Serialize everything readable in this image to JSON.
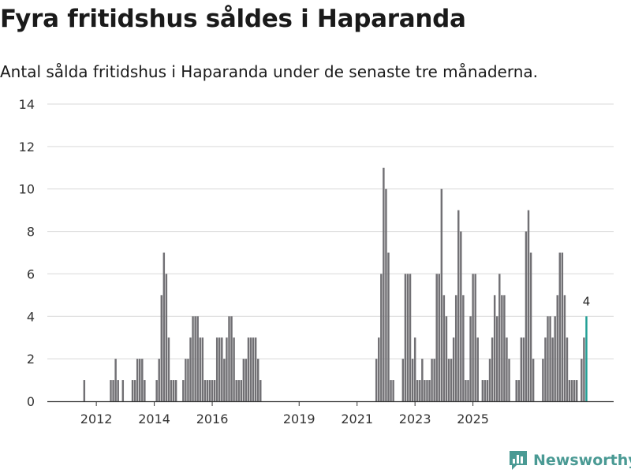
{
  "header": {
    "title": "Fyra fritidshus såldes i Haparanda",
    "subtitle": "Antal sålda fritidshus i Haparanda under de senaste tre månaderna."
  },
  "brand": {
    "name": "Newsworthy"
  },
  "colors": {
    "bar": "#717074",
    "highlight": "#1f9e94",
    "grid": "#d9d9d9",
    "brand": "#4a9a94"
  },
  "chart_data": {
    "type": "bar",
    "title": "Fyra fritidshus såldes i Haparanda",
    "xlabel": "",
    "ylabel": "",
    "ylim": [
      0,
      14
    ],
    "yticks": [
      "0",
      "2",
      "4",
      "6",
      "8",
      "10",
      "12",
      "14"
    ],
    "start": "2011-08",
    "xticks": [
      "2012",
      "2014",
      "2016",
      "2019",
      "2021",
      "2023",
      "2025"
    ],
    "highlight_label": "4",
    "values": [
      0,
      0,
      0,
      0,
      0,
      1,
      0,
      0,
      0,
      0,
      0,
      0,
      0,
      0,
      0,
      0,
      1,
      1,
      2,
      1,
      0,
      1,
      0,
      0,
      0,
      1,
      1,
      2,
      2,
      2,
      1,
      0,
      0,
      0,
      0,
      1,
      2,
      5,
      7,
      6,
      3,
      1,
      1,
      1,
      0,
      0,
      1,
      2,
      2,
      3,
      4,
      4,
      4,
      3,
      3,
      1,
      1,
      1,
      1,
      1,
      3,
      3,
      3,
      2,
      3,
      4,
      4,
      3,
      1,
      1,
      1,
      2,
      2,
      3,
      3,
      3,
      3,
      2,
      1,
      0,
      0,
      0,
      0,
      0,
      0,
      0,
      0,
      0,
      0,
      0,
      0,
      0,
      0,
      0,
      0,
      0,
      0,
      0,
      0,
      0,
      0,
      0,
      0,
      0,
      0,
      0,
      0,
      0,
      0,
      0,
      0,
      0,
      0,
      0,
      0,
      0,
      0,
      0,
      0,
      0,
      0,
      0,
      0,
      0,
      0,
      0,
      2,
      3,
      6,
      11,
      10,
      7,
      1,
      1,
      0,
      0,
      0,
      2,
      6,
      6,
      6,
      2,
      3,
      1,
      1,
      2,
      1,
      1,
      1,
      2,
      2,
      6,
      6,
      10,
      5,
      4,
      2,
      2,
      3,
      5,
      9,
      8,
      5,
      1,
      1,
      4,
      6,
      6,
      3,
      0,
      1,
      1,
      1,
      2,
      3,
      5,
      4,
      6,
      5,
      5,
      3,
      2,
      0,
      0,
      1,
      1,
      3,
      3,
      8,
      9,
      7,
      2,
      0,
      0,
      0,
      2,
      3,
      4,
      4,
      3,
      4,
      5,
      7,
      7,
      5,
      3,
      1,
      1,
      1,
      1,
      0,
      2,
      3,
      4
    ]
  }
}
